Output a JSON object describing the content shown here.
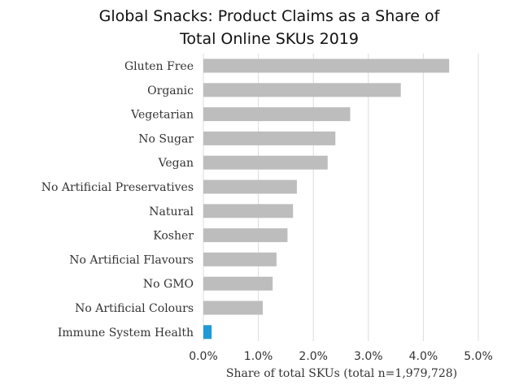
{
  "chart_data": {
    "type": "bar",
    "orientation": "horizontal",
    "title": [
      "Global Snacks: Product Claims as a Share of",
      "Total Online SKUs 2019"
    ],
    "xlabel": "Share of total SKUs (total n=1,979,728)",
    "categories": [
      "Gluten Free",
      "Organic",
      "Vegetarian",
      "No Sugar",
      "Vegan",
      "No Artificial Preservatives",
      "Natural",
      "Kosher",
      "No Artificial Flavours",
      "No GMO",
      "No Artificial Colours",
      "Immune System Health"
    ],
    "values": [
      4.47,
      3.59,
      2.67,
      2.4,
      2.26,
      1.7,
      1.63,
      1.53,
      1.33,
      1.26,
      1.08,
      0.15
    ],
    "xlim": [
      0,
      5
    ],
    "ticks": [
      "0.0%",
      "1.0%",
      "2.0%",
      "3.0%",
      "4.0%",
      "5.0%"
    ],
    "grid": true,
    "colors": {
      "bar": "#bdbdbd",
      "highlight": "#1f9ad6",
      "highlight_category": "Immune System Health"
    }
  }
}
